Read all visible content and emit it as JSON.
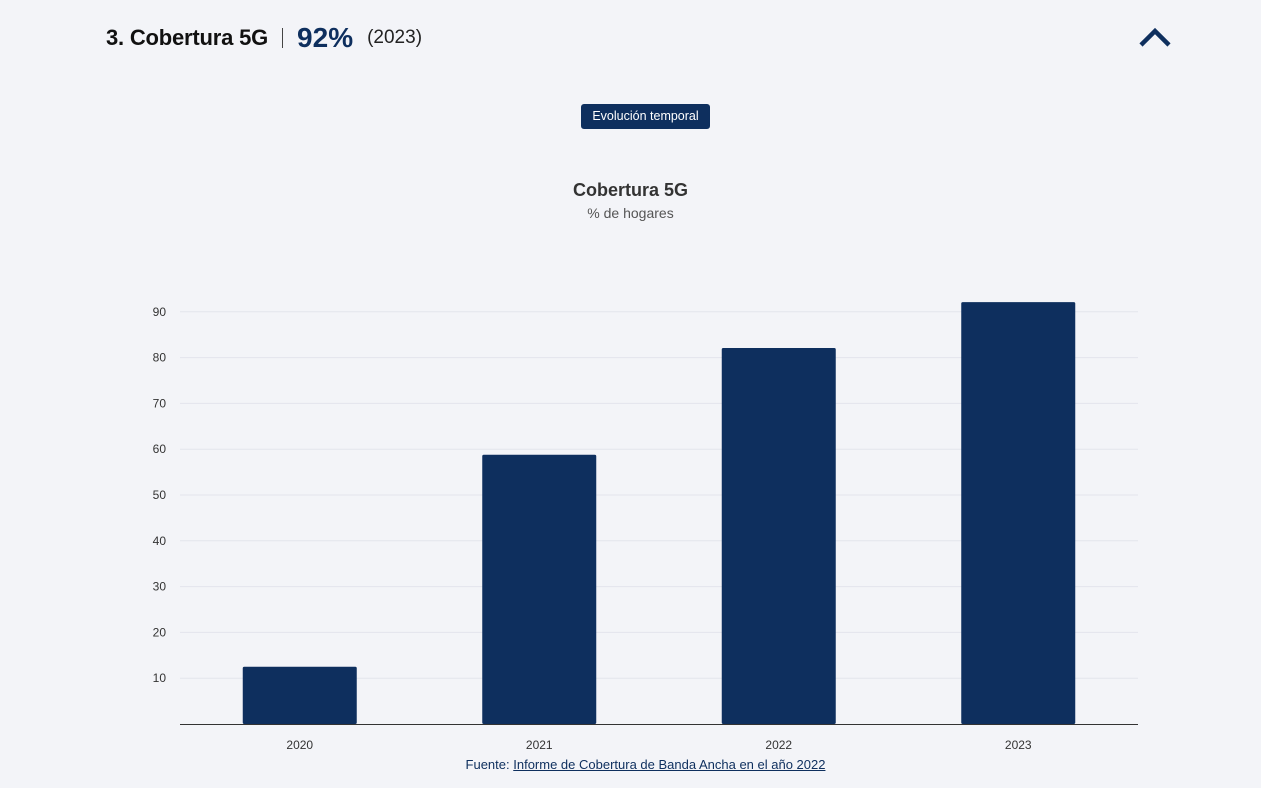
{
  "header": {
    "title": "3. Cobertura 5G",
    "value": "92%",
    "year": "(2023)",
    "collapse_icon": "chevron-up-icon"
  },
  "tab": {
    "label": "Evolución temporal"
  },
  "colors": {
    "accent": "#0e2f5e",
    "background": "#f3f4f8",
    "gridline": "#e3e5ec",
    "axis": "#333333"
  },
  "chart_data": {
    "type": "bar",
    "title": "Cobertura 5G",
    "subtitle": "% de hogares",
    "xlabel": "",
    "ylabel": "",
    "categories": [
      "2020",
      "2021",
      "2022",
      "2023"
    ],
    "values": [
      12.5,
      58.8,
      82.1,
      92.1
    ],
    "yticks": [
      10,
      20,
      30,
      40,
      50,
      60,
      70,
      80,
      90
    ],
    "ylim": [
      0,
      90
    ],
    "grid": true,
    "legend": "none"
  },
  "source": {
    "prefix": "Fuente: ",
    "link_text": "Informe de Cobertura de Banda Ancha en el año 2022"
  }
}
